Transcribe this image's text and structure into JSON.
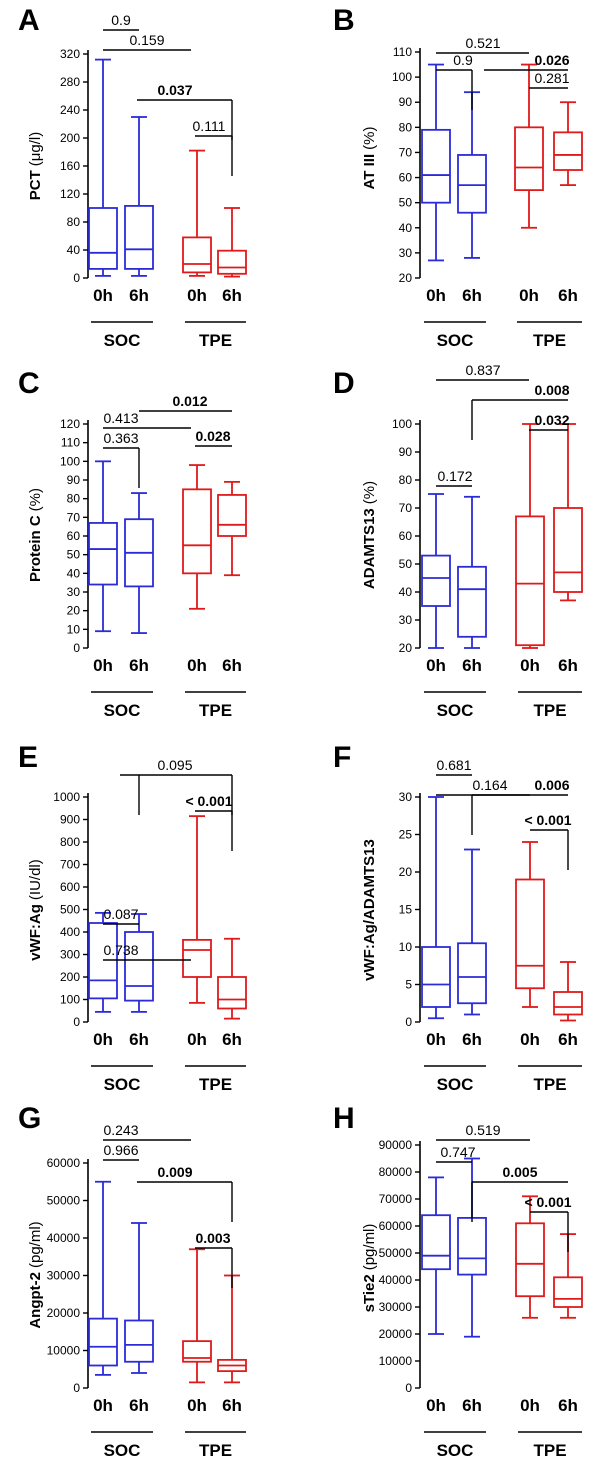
{
  "colors": {
    "soc": "#2b2bd8",
    "tpe": "#e01a1a",
    "axis": "#000000"
  },
  "chart_data": [
    {
      "panel": "A",
      "type": "box",
      "ylabel_main": "PCT",
      "ylabel_unit": "(μg/l)",
      "ylim": [
        0,
        320
      ],
      "yticks": [
        0,
        40,
        80,
        120,
        160,
        200,
        240,
        280,
        320
      ],
      "xticks": [
        "0h",
        "6h",
        "0h",
        "6h"
      ],
      "groups": [
        "SOC",
        "TPE"
      ],
      "boxes": [
        {
          "min": 3,
          "q1": 13,
          "median": 36,
          "q3": 100,
          "max": 312
        },
        {
          "min": 3,
          "q1": 13,
          "median": 41,
          "q3": 103,
          "max": 230
        },
        {
          "min": 3,
          "q1": 8,
          "median": 20,
          "q3": 58,
          "max": 182
        },
        {
          "min": 2,
          "q1": 6,
          "median": 15,
          "q3": 39,
          "max": 100
        }
      ],
      "pvalues": [
        {
          "label": "0.9",
          "bold": false
        },
        {
          "label": "0.159",
          "bold": false
        },
        {
          "label": "0.037",
          "bold": true
        },
        {
          "label": "0.111",
          "bold": false
        }
      ]
    },
    {
      "panel": "B",
      "type": "box",
      "ylabel_main": "AT III",
      "ylabel_unit": "(%)",
      "ylim": [
        20,
        110
      ],
      "yticks": [
        20,
        30,
        40,
        50,
        60,
        70,
        80,
        90,
        100,
        110
      ],
      "xticks": [
        "0h",
        "6h",
        "0h",
        "6h"
      ],
      "groups": [
        "SOC",
        "TPE"
      ],
      "boxes": [
        {
          "min": 27,
          "q1": 50,
          "median": 61,
          "q3": 79,
          "max": 105
        },
        {
          "min": 28,
          "q1": 46,
          "median": 57,
          "q3": 69,
          "max": 94
        },
        {
          "min": 40,
          "q1": 55,
          "median": 64,
          "q3": 80,
          "max": 105
        },
        {
          "min": 57,
          "q1": 63,
          "median": 69,
          "q3": 78,
          "max": 90
        }
      ],
      "pvalues": [
        {
          "label": "0.521",
          "bold": false
        },
        {
          "label": "0.026",
          "bold": true
        },
        {
          "label": "0.9",
          "bold": false
        },
        {
          "label": "0.281",
          "bold": false
        }
      ]
    },
    {
      "panel": "C",
      "type": "box",
      "ylabel_main": "Protein C",
      "ylabel_unit": "(%)",
      "ylim": [
        0,
        120
      ],
      "yticks": [
        0,
        10,
        20,
        30,
        40,
        50,
        60,
        70,
        80,
        90,
        100,
        110,
        120
      ],
      "xticks": [
        "0h",
        "6h",
        "0h",
        "6h"
      ],
      "groups": [
        "SOC",
        "TPE"
      ],
      "boxes": [
        {
          "min": 9,
          "q1": 34,
          "median": 53,
          "q3": 67,
          "max": 100
        },
        {
          "min": 8,
          "q1": 33,
          "median": 51,
          "q3": 69,
          "max": 83
        },
        {
          "min": 21,
          "q1": 40,
          "median": 55,
          "q3": 85,
          "max": 98
        },
        {
          "min": 39,
          "q1": 60,
          "median": 66,
          "q3": 82,
          "max": 89
        }
      ],
      "pvalues": [
        {
          "label": "0.413",
          "bold": false
        },
        {
          "label": "0.012",
          "bold": true
        },
        {
          "label": "0.363",
          "bold": false
        },
        {
          "label": "0.028",
          "bold": true
        }
      ]
    },
    {
      "panel": "D",
      "type": "box",
      "ylabel_main": "ADAMTS13",
      "ylabel_unit": "(%)",
      "ylim": [
        20,
        100
      ],
      "yticks": [
        20,
        30,
        40,
        50,
        60,
        70,
        80,
        90,
        100
      ],
      "xticks": [
        "0h",
        "6h",
        "0h",
        "6h"
      ],
      "groups": [
        "SOC",
        "TPE"
      ],
      "boxes": [
        {
          "min": 20,
          "q1": 35,
          "median": 45,
          "q3": 53,
          "max": 75
        },
        {
          "min": 20,
          "q1": 24,
          "median": 41,
          "q3": 49,
          "max": 74
        },
        {
          "min": 20,
          "q1": 21,
          "median": 43,
          "q3": 67,
          "max": 100
        },
        {
          "min": 37,
          "q1": 40,
          "median": 47,
          "q3": 70,
          "max": 100
        }
      ],
      "pvalues": [
        {
          "label": "0.837",
          "bold": false
        },
        {
          "label": "0.008",
          "bold": true
        },
        {
          "label": "0.032",
          "bold": true
        },
        {
          "label": "0.172",
          "bold": false
        }
      ]
    },
    {
      "panel": "E",
      "type": "box",
      "ylabel_main": "vWF:Ag",
      "ylabel_unit": "(IU/dl)",
      "ylim": [
        0,
        1000
      ],
      "yticks": [
        0,
        100,
        200,
        300,
        400,
        500,
        600,
        700,
        800,
        900,
        1000
      ],
      "xticks": [
        "0h",
        "6h",
        "0h",
        "6h"
      ],
      "groups": [
        "SOC",
        "TPE"
      ],
      "boxes": [
        {
          "min": 45,
          "q1": 105,
          "median": 185,
          "q3": 440,
          "max": 485
        },
        {
          "min": 45,
          "q1": 95,
          "median": 160,
          "q3": 400,
          "max": 480
        },
        {
          "min": 85,
          "q1": 200,
          "median": 320,
          "q3": 365,
          "max": 915
        },
        {
          "min": 15,
          "q1": 60,
          "median": 100,
          "q3": 200,
          "max": 370
        }
      ],
      "pvalues": [
        {
          "label": "0.095",
          "bold": false
        },
        {
          "label": "< 0.001",
          "bold": true
        },
        {
          "label": "0.087",
          "bold": false
        },
        {
          "label": "0.738",
          "bold": false
        }
      ]
    },
    {
      "panel": "F",
      "type": "box",
      "ylabel_main": "vWF:Ag/ADAMTS13",
      "ylabel_unit": "",
      "ylim": [
        0,
        30
      ],
      "yticks": [
        0,
        5,
        10,
        15,
        20,
        25,
        30
      ],
      "xticks": [
        "0h",
        "6h",
        "0h",
        "6h"
      ],
      "groups": [
        "SOC",
        "TPE"
      ],
      "boxes": [
        {
          "min": 0.5,
          "q1": 2,
          "median": 5,
          "q3": 10,
          "max": 30
        },
        {
          "min": 1,
          "q1": 2.5,
          "median": 6,
          "q3": 10.5,
          "max": 23
        },
        {
          "min": 2,
          "q1": 4.5,
          "median": 7.5,
          "q3": 19,
          "max": 24
        },
        {
          "min": 0.2,
          "q1": 1,
          "median": 2,
          "q3": 4,
          "max": 8
        }
      ],
      "pvalues": [
        {
          "label": "0.681",
          "bold": false
        },
        {
          "label": "0.164",
          "bold": false
        },
        {
          "label": "0.006",
          "bold": true
        },
        {
          "label": "< 0.001",
          "bold": true
        }
      ]
    },
    {
      "panel": "G",
      "type": "box",
      "ylabel_main": "Angpt-2",
      "ylabel_unit": "(pg/ml)",
      "ylim": [
        0,
        60000
      ],
      "yticks": [
        0,
        10000,
        20000,
        30000,
        40000,
        50000,
        60000
      ],
      "xticks": [
        "0h",
        "6h",
        "0h",
        "6h"
      ],
      "groups": [
        "SOC",
        "TPE"
      ],
      "boxes": [
        {
          "min": 3500,
          "q1": 6000,
          "median": 11000,
          "q3": 18500,
          "max": 55000
        },
        {
          "min": 4000,
          "q1": 7000,
          "median": 11500,
          "q3": 18000,
          "max": 44000
        },
        {
          "min": 1500,
          "q1": 7000,
          "median": 8000,
          "q3": 12500,
          "max": 37000
        },
        {
          "min": 1500,
          "q1": 4500,
          "median": 6000,
          "q3": 7500,
          "max": 30000
        }
      ],
      "pvalues": [
        {
          "label": "0.243",
          "bold": false
        },
        {
          "label": "0.966",
          "bold": false
        },
        {
          "label": "0.009",
          "bold": true
        },
        {
          "label": "0.003",
          "bold": true
        }
      ]
    },
    {
      "panel": "H",
      "type": "box",
      "ylabel_main": "sTie2",
      "ylabel_unit": "(pg/ml)",
      "ylim": [
        0,
        90000
      ],
      "yticks": [
        0,
        10000,
        20000,
        30000,
        40000,
        50000,
        60000,
        70000,
        80000,
        90000
      ],
      "xticks": [
        "0h",
        "6h",
        "0h",
        "6h"
      ],
      "groups": [
        "SOC",
        "TPE"
      ],
      "boxes": [
        {
          "min": 20000,
          "q1": 44000,
          "median": 49000,
          "q3": 64000,
          "max": 78000
        },
        {
          "min": 19000,
          "q1": 42000,
          "median": 48000,
          "q3": 63000,
          "max": 85000
        },
        {
          "min": 26000,
          "q1": 34000,
          "median": 46000,
          "q3": 61000,
          "max": 71000
        },
        {
          "min": 26000,
          "q1": 30000,
          "median": 33000,
          "q3": 41000,
          "max": 57000
        }
      ],
      "pvalues": [
        {
          "label": "0.519",
          "bold": false
        },
        {
          "label": "0.747",
          "bold": false
        },
        {
          "label": "0.005",
          "bold": true
        },
        {
          "label": "< 0.001",
          "bold": true
        }
      ]
    }
  ]
}
